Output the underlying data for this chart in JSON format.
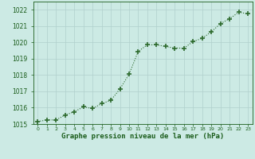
{
  "x": [
    0,
    1,
    2,
    3,
    4,
    5,
    6,
    7,
    8,
    9,
    10,
    11,
    12,
    13,
    14,
    15,
    16,
    17,
    18,
    19,
    20,
    21,
    22,
    23
  ],
  "y": [
    1015.15,
    1015.25,
    1015.25,
    1015.55,
    1015.75,
    1016.05,
    1015.95,
    1016.25,
    1016.45,
    1017.15,
    1018.05,
    1019.45,
    1019.85,
    1019.85,
    1019.75,
    1019.65,
    1019.65,
    1020.05,
    1020.25,
    1020.65,
    1021.15,
    1021.45,
    1021.85,
    1021.75
  ],
  "line_color": "#2d6a2d",
  "marker_color": "#2d6a2d",
  "bg_color": "#cceae4",
  "grid_color": "#b0d0cc",
  "xlabel": "Graphe pression niveau de la mer (hPa)",
  "xlabel_color": "#1a5c1a",
  "tick_color": "#1a5c1a",
  "ylim": [
    1015.0,
    1022.5
  ],
  "xlim": [
    -0.5,
    23.5
  ],
  "yticks": [
    1015,
    1016,
    1017,
    1018,
    1019,
    1020,
    1021,
    1022
  ],
  "xticks": [
    0,
    1,
    2,
    3,
    4,
    5,
    6,
    7,
    8,
    9,
    10,
    11,
    12,
    13,
    14,
    15,
    16,
    17,
    18,
    19,
    20,
    21,
    22,
    23
  ],
  "xtick_labels": [
    "0",
    "1",
    "2",
    "3",
    "4",
    "5",
    "6",
    "7",
    "8",
    "9",
    "10",
    "11",
    "12",
    "13",
    "14",
    "15",
    "16",
    "17",
    "18",
    "19",
    "20",
    "21",
    "22",
    "23"
  ]
}
